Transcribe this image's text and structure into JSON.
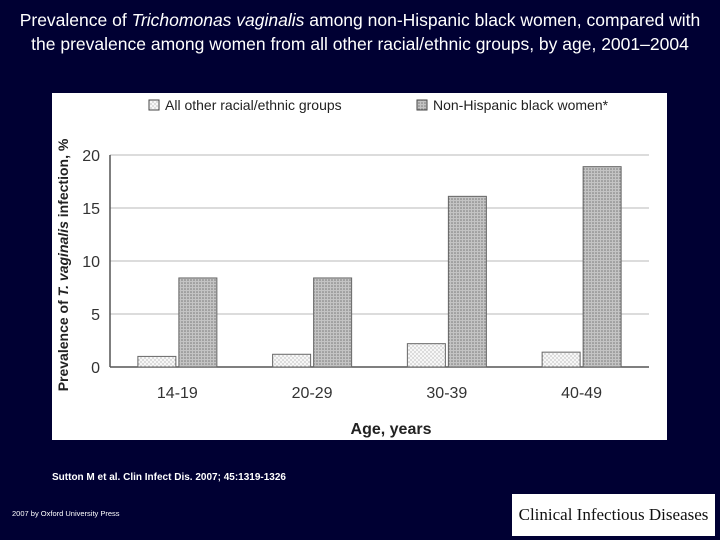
{
  "slide": {
    "title_part1": "Prevalence of ",
    "title_italic": "Trichomonas vaginalis",
    "title_part2": " among non-Hispanic black women, compared with the prevalence among women from all other racial/ethnic groups, by age, 2001–2004",
    "citation": "Sutton M et al. Clin Infect Dis. 2007; 45:1319-1326",
    "copyright": "2007 by Oxford University Press",
    "journal_logo": "Clinical Infectious Diseases"
  },
  "colors": {
    "background": "#000033",
    "series_other_fill": "#f2f2f2",
    "series_black_fill": "#c8c8c8",
    "axis": "#555555"
  },
  "chart_data": {
    "type": "bar",
    "categories": [
      "14-19",
      "20-29",
      "30-39",
      "40-49"
    ],
    "series": [
      {
        "name": "All other racial/ethnic groups",
        "values": [
          1.0,
          1.2,
          2.2,
          1.4
        ]
      },
      {
        "name": "Non-Hispanic black women*",
        "values": [
          8.4,
          8.4,
          16.1,
          18.9
        ]
      }
    ],
    "xlabel": "Age, years",
    "ylabel_part1": "Prevalence of ",
    "ylabel_italic": "T. vaginalis",
    "ylabel_part2": " infection, %",
    "ylim": [
      0,
      20
    ],
    "yticks": [
      0,
      5,
      10,
      15,
      20
    ],
    "grid": true,
    "legend_position": "top"
  }
}
